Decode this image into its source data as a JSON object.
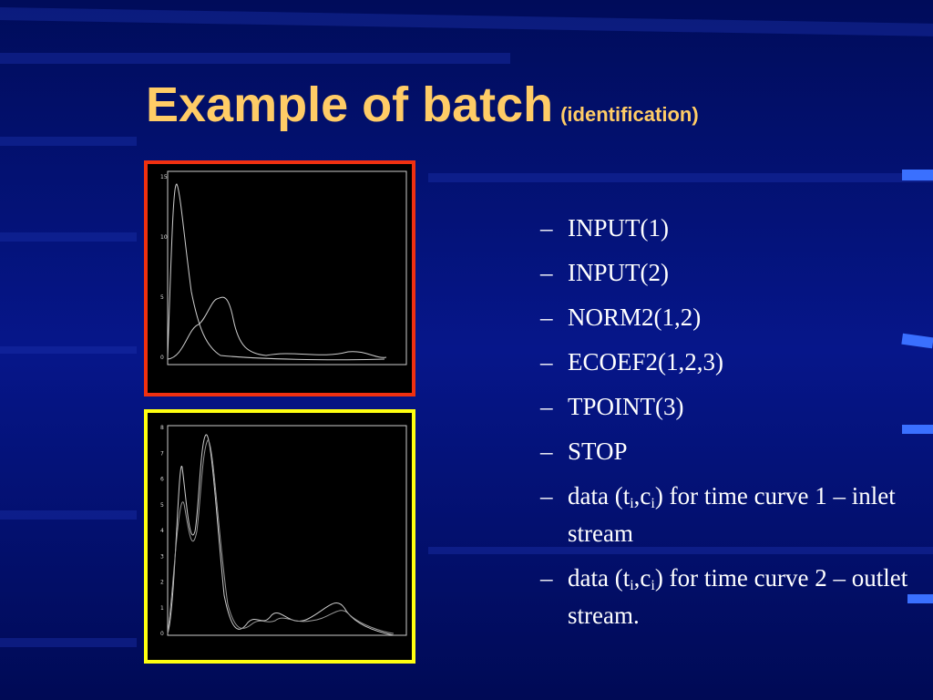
{
  "title": "Example of batch",
  "subtitle": "(identification)",
  "plot_top": {
    "yticks": [
      "15",
      "10",
      "5",
      "0"
    ]
  },
  "plot_bottom": {
    "yticks": [
      "8",
      "7",
      "6",
      "5",
      "4",
      "3",
      "2",
      "1",
      "0"
    ]
  },
  "list": {
    "marker": "–",
    "items": [
      {
        "parts": [
          "INPUT(1)"
        ]
      },
      {
        "parts": [
          "INPUT(2)"
        ]
      },
      {
        "parts": [
          "NORM2(1,2)"
        ]
      },
      {
        "parts": [
          "ECOEF2(1,2,3)"
        ]
      },
      {
        "parts": [
          "TPOINT(3)"
        ]
      },
      {
        "parts": [
          "STOP"
        ]
      },
      {
        "parts": [
          "data (t",
          "i",
          ",c",
          "i",
          ") for time curve 1 – inlet stream"
        ]
      },
      {
        "parts": [
          "data (t",
          "i",
          ",c",
          "i",
          ") for time curve 2 – outlet stream."
        ]
      }
    ]
  }
}
